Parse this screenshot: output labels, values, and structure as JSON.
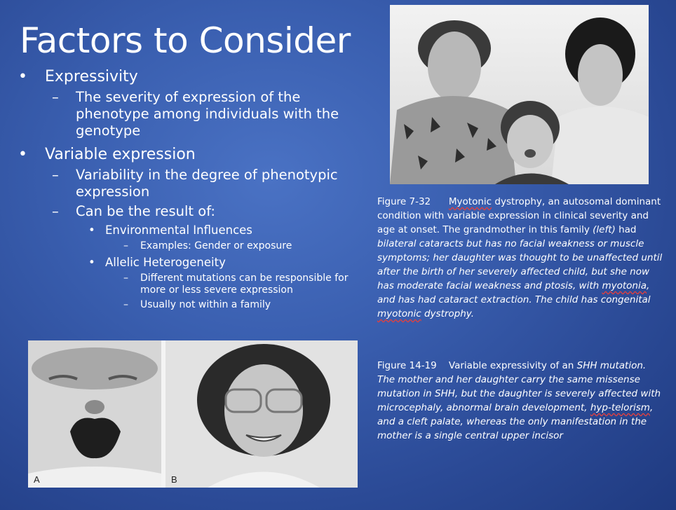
{
  "title": "Factors to Consider",
  "bullets": {
    "expressivity": "Expressivity",
    "expressivity_def": "The severity of expression of the phenotype among individuals with the genotype",
    "variable_expression": "Variable expression",
    "variable_def": "Variability in the degree of phenotypic expression",
    "result_of": "Can be the result of:",
    "environmental": "Environmental Influences",
    "env_example": "Examples: Gender or exposure",
    "allelic": "Allelic Heterogeneity",
    "allelic_1": "Different mutations can be responsible for more or less severe expression",
    "allelic_2": "Usually not within a family"
  },
  "caption1": {
    "label": "Figure 7-32",
    "w_myotonic": "Myotonic",
    "plain": " dystrophy, an autosomal dominant condition with variable expression in clinical severity and age at onset. The grandmother in this family ",
    "left": "(left)",
    "plain2": " had",
    "italic": "bilateral cataracts but has no facial weakness or muscle symptoms; her daughter was thought to be unaffected until after the birth of her severely affected child, but she now has moderate facial weakness and ptosis, with ",
    "w_myotonia": "myotonia",
    "italic2": ", and has had cataract extraction. The child has congenital ",
    "w_myotonic2": "myotonic",
    "italic3": " dystrophy."
  },
  "caption2": {
    "label": "Figure 14-19",
    "plain": "Variable expressivity of an ",
    "italic": "SHH mutation. The mother and her daughter carry the same missense mutation in SHH, but the daughter is severely affected with microcephaly, abnormal brain development, ",
    "w_hyp": "hyp-telorism",
    "italic2": ", and a cleft palate, whereas the only manifestation in the mother is a single central upper incisor"
  },
  "photo_labels": {
    "a": "A",
    "b": "B"
  }
}
